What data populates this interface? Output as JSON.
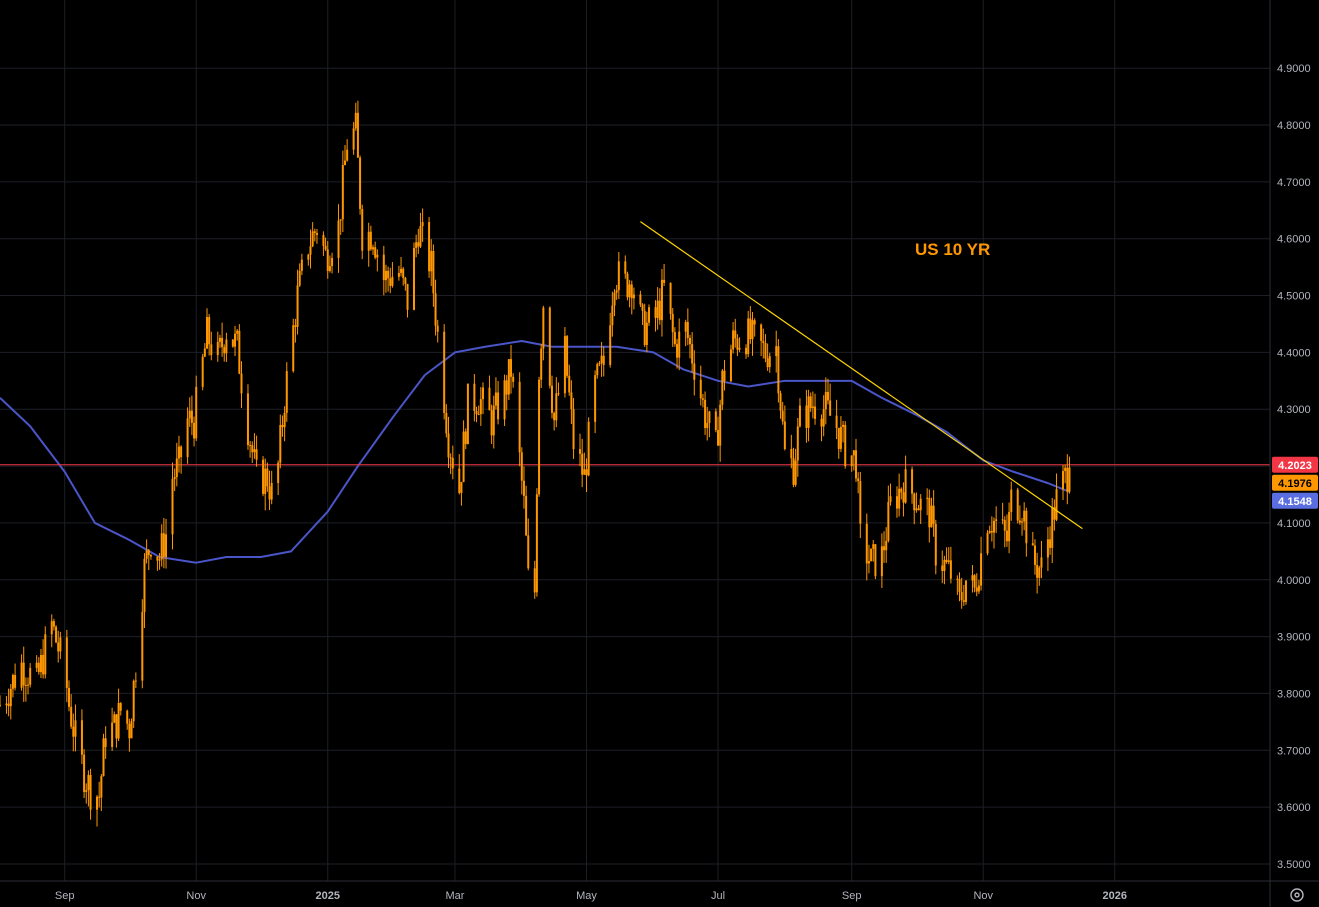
{
  "chart_data": {
    "type": "candlestick",
    "annotation": "US 10 YR",
    "y_axis": {
      "ticks": [
        "4.9000",
        "4.8000",
        "4.7000",
        "4.6000",
        "4.5000",
        "4.4000",
        "4.3000",
        "4.2000",
        "4.1000",
        "4.0000",
        "3.9000",
        "3.8000",
        "3.7000",
        "3.6000",
        "3.5000"
      ],
      "tick_values": [
        4.9,
        4.8,
        4.7,
        4.6,
        4.5,
        4.4,
        4.3,
        4.2,
        4.1,
        4.0,
        3.9,
        3.8,
        3.7,
        3.6,
        3.5
      ],
      "range": [
        3.47,
        5.02
      ]
    },
    "x_axis": {
      "ticks": [
        "Sep",
        "Nov",
        "2025",
        "Mar",
        "May",
        "Jul",
        "Sep",
        "Nov",
        "2026"
      ],
      "tick_dates": [
        "2024-09-01",
        "2024-11-01",
        "2025-01-01",
        "2025-03-01",
        "2025-05-01",
        "2025-07-01",
        "2025-09-01",
        "2025-11-01",
        "2026-01-01"
      ],
      "range": [
        "2024-08-02",
        "2026-03-14"
      ]
    },
    "price_tags": [
      {
        "label": "4.2023",
        "value": 4.2023,
        "color": "#f23645",
        "text_color": "#ffffff"
      },
      {
        "label": "4.1976",
        "value": 4.1976,
        "color": "#ff9800",
        "text_color": "#000000"
      },
      {
        "label": "4.1548",
        "value": 4.1548,
        "color": "#5b6ee1",
        "text_color": "#ffffff"
      }
    ],
    "horizontal_line": {
      "value": 4.2023,
      "color": "#f23645"
    },
    "price_series": {
      "name": "",
      "color": "#ff9800",
      "points": [
        [
          "2024-08-02",
          3.78
        ],
        [
          "2024-08-05",
          3.8
        ],
        [
          "2024-08-12",
          3.85
        ],
        [
          "2024-08-19",
          3.82
        ],
        [
          "2024-08-26",
          3.92
        ],
        [
          "2024-09-01",
          3.84
        ],
        [
          "2024-09-03",
          3.78
        ],
        [
          "2024-09-06",
          3.72
        ],
        [
          "2024-09-10",
          3.66
        ],
        [
          "2024-09-13",
          3.63
        ],
        [
          "2024-09-17",
          3.62
        ],
        [
          "2024-09-20",
          3.73
        ],
        [
          "2024-09-24",
          3.74
        ],
        [
          "2024-09-27",
          3.77
        ],
        [
          "2024-10-01",
          3.74
        ],
        [
          "2024-10-04",
          3.85
        ],
        [
          "2024-10-08",
          4.02
        ],
        [
          "2024-10-11",
          4.07
        ],
        [
          "2024-10-15",
          4.04
        ],
        [
          "2024-10-18",
          4.08
        ],
        [
          "2024-10-21",
          4.18
        ],
        [
          "2024-10-24",
          4.2
        ],
        [
          "2024-10-28",
          4.28
        ],
        [
          "2024-10-31",
          4.28
        ],
        [
          "2024-11-06",
          4.43
        ],
        [
          "2024-11-11",
          4.39
        ],
        [
          "2024-11-15",
          4.44
        ],
        [
          "2024-11-20",
          4.41
        ],
        [
          "2024-11-25",
          4.27
        ],
        [
          "2024-11-29",
          4.18
        ],
        [
          "2024-12-04",
          4.18
        ],
        [
          "2024-12-06",
          4.15
        ],
        [
          "2024-12-09",
          4.2
        ],
        [
          "2024-12-12",
          4.32
        ],
        [
          "2024-12-18",
          4.5
        ],
        [
          "2024-12-23",
          4.59
        ],
        [
          "2024-12-27",
          4.62
        ],
        [
          "2024-12-31",
          4.57
        ],
        [
          "2025-01-06",
          4.62
        ],
        [
          "2025-01-10",
          4.77
        ],
        [
          "2025-01-14",
          4.79
        ],
        [
          "2025-01-17",
          4.61
        ],
        [
          "2025-01-22",
          4.61
        ],
        [
          "2025-01-27",
          4.53
        ],
        [
          "2025-02-03",
          4.54
        ],
        [
          "2025-02-07",
          4.49
        ],
        [
          "2025-02-12",
          4.62
        ],
        [
          "2025-02-18",
          4.55
        ],
        [
          "2025-02-21",
          4.43
        ],
        [
          "2025-02-26",
          4.25
        ],
        [
          "2025-03-03",
          4.16
        ],
        [
          "2025-03-07",
          4.31
        ],
        [
          "2025-03-12",
          4.32
        ],
        [
          "2025-03-18",
          4.28
        ],
        [
          "2025-03-24",
          4.33
        ],
        [
          "2025-03-27",
          4.37
        ],
        [
          "2025-04-02",
          4.13
        ],
        [
          "2025-04-04",
          4.0
        ],
        [
          "2025-04-07",
          3.98
        ],
        [
          "2025-04-09",
          4.37
        ],
        [
          "2025-04-11",
          4.49
        ],
        [
          "2025-04-16",
          4.28
        ],
        [
          "2025-04-21",
          4.4
        ],
        [
          "2025-04-25",
          4.24
        ],
        [
          "2025-04-30",
          4.18
        ],
        [
          "2025-05-05",
          4.34
        ],
        [
          "2025-05-09",
          4.38
        ],
        [
          "2025-05-14",
          4.54
        ],
        [
          "2025-05-19",
          4.52
        ],
        [
          "2025-05-22",
          4.53
        ],
        [
          "2025-05-27",
          4.44
        ],
        [
          "2025-06-02",
          4.46
        ],
        [
          "2025-06-06",
          4.51
        ],
        [
          "2025-06-11",
          4.41
        ],
        [
          "2025-06-16",
          4.44
        ],
        [
          "2025-06-20",
          4.38
        ],
        [
          "2025-06-25",
          4.29
        ],
        [
          "2025-06-30",
          4.23
        ],
        [
          "2025-07-03",
          4.35
        ],
        [
          "2025-07-08",
          4.42
        ],
        [
          "2025-07-14",
          4.43
        ],
        [
          "2025-07-18",
          4.42
        ],
        [
          "2025-07-23",
          4.4
        ],
        [
          "2025-07-28",
          4.41
        ],
        [
          "2025-08-01",
          4.22
        ],
        [
          "2025-08-05",
          4.2
        ],
        [
          "2025-08-08",
          4.28
        ],
        [
          "2025-08-14",
          4.31
        ],
        [
          "2025-08-20",
          4.3
        ],
        [
          "2025-08-25",
          4.27
        ],
        [
          "2025-08-29",
          4.23
        ],
        [
          "2025-09-03",
          4.21
        ],
        [
          "2025-09-05",
          4.07
        ],
        [
          "2025-09-10",
          4.03
        ],
        [
          "2025-09-15",
          4.04
        ],
        [
          "2025-09-19",
          4.13
        ],
        [
          "2025-09-25",
          4.17
        ],
        [
          "2025-09-30",
          4.15
        ],
        [
          "2025-10-03",
          4.13
        ],
        [
          "2025-10-07",
          4.12
        ],
        [
          "2025-10-10",
          4.05
        ],
        [
          "2025-10-15",
          4.02
        ],
        [
          "2025-10-17",
          4.01
        ],
        [
          "2025-10-21",
          3.96
        ],
        [
          "2025-10-24",
          4.0
        ],
        [
          "2025-10-28",
          3.98
        ],
        [
          "2025-11-03",
          4.11
        ],
        [
          "2025-11-07",
          4.1
        ],
        [
          "2025-11-12",
          4.07
        ],
        [
          "2025-11-14",
          4.14
        ],
        [
          "2025-11-19",
          4.13
        ],
        [
          "2025-11-24",
          4.03
        ],
        [
          "2025-11-28",
          4.02
        ],
        [
          "2025-12-02",
          4.09
        ],
        [
          "2025-12-05",
          4.14
        ],
        [
          "2025-12-09",
          4.18
        ],
        [
          "2025-12-11",
          4.1976
        ]
      ]
    },
    "moving_average": {
      "name": "",
      "color": "#4a55c8",
      "points": [
        [
          "2024-08-02",
          4.32
        ],
        [
          "2024-08-16",
          4.27
        ],
        [
          "2024-09-01",
          4.19
        ],
        [
          "2024-09-15",
          4.1
        ],
        [
          "2024-10-01",
          4.07
        ],
        [
          "2024-10-15",
          4.04
        ],
        [
          "2024-11-01",
          4.03
        ],
        [
          "2024-11-15",
          4.04
        ],
        [
          "2024-12-01",
          4.04
        ],
        [
          "2024-12-15",
          4.05
        ],
        [
          "2025-01-01",
          4.12
        ],
        [
          "2025-01-15",
          4.2
        ],
        [
          "2025-02-01",
          4.29
        ],
        [
          "2025-02-15",
          4.36
        ],
        [
          "2025-03-01",
          4.4
        ],
        [
          "2025-03-15",
          4.41
        ],
        [
          "2025-04-01",
          4.42
        ],
        [
          "2025-04-15",
          4.41
        ],
        [
          "2025-05-01",
          4.41
        ],
        [
          "2025-05-15",
          4.41
        ],
        [
          "2025-06-01",
          4.4
        ],
        [
          "2025-06-15",
          4.37
        ],
        [
          "2025-07-01",
          4.35
        ],
        [
          "2025-07-15",
          4.34
        ],
        [
          "2025-08-01",
          4.35
        ],
        [
          "2025-08-15",
          4.35
        ],
        [
          "2025-09-01",
          4.35
        ],
        [
          "2025-09-15",
          4.32
        ],
        [
          "2025-10-01",
          4.29
        ],
        [
          "2025-10-15",
          4.26
        ],
        [
          "2025-11-01",
          4.21
        ],
        [
          "2025-11-15",
          4.19
        ],
        [
          "2025-12-01",
          4.17
        ],
        [
          "2025-12-11",
          4.1548
        ]
      ]
    },
    "trendline": {
      "color": "#ffd500",
      "start": [
        "2025-05-26",
        4.63
      ],
      "end": [
        "2025-12-17",
        4.09
      ]
    }
  }
}
